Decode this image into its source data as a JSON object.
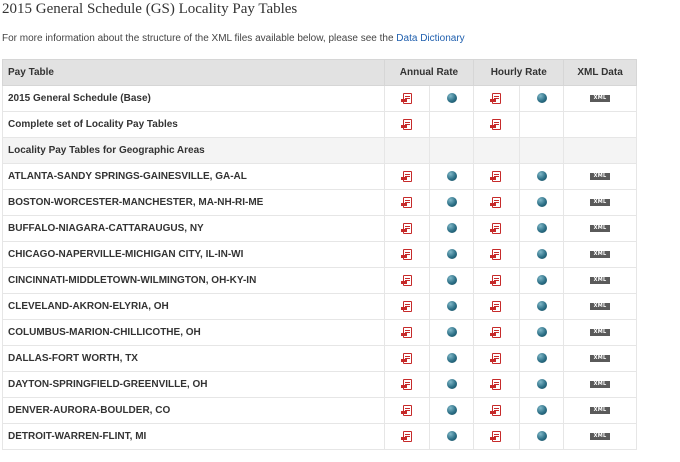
{
  "page": {
    "title": "2015 General Schedule (GS) Locality Pay Tables",
    "intro_text": "For more information about the structure of the XML files available below, please see the",
    "intro_link": "Data Dictionary"
  },
  "table": {
    "headers": {
      "pay_table": "Pay Table",
      "annual_rate": "Annual Rate",
      "hourly_rate": "Hourly Rate",
      "xml_data": "XML Data"
    },
    "xml_label": "XML",
    "icons": {
      "pdf": "pdf-icon",
      "web": "globe-icon",
      "xml": "xml-icon"
    },
    "rows": [
      {
        "name": "2015 General Schedule (Base)",
        "annual_pdf": true,
        "annual_web": true,
        "hourly_pdf": true,
        "hourly_web": true,
        "xml": true
      },
      {
        "name": "Complete set of Locality Pay Tables",
        "annual_pdf": true,
        "annual_web": false,
        "hourly_pdf": true,
        "hourly_web": false,
        "xml": false
      },
      {
        "name": "Locality Pay Tables for Geographic Areas",
        "section": true
      },
      {
        "name": "ATLANTA-SANDY SPRINGS-GAINESVILLE, GA-AL",
        "annual_pdf": true,
        "annual_web": true,
        "hourly_pdf": true,
        "hourly_web": true,
        "xml": true
      },
      {
        "name": "BOSTON-WORCESTER-MANCHESTER, MA-NH-RI-ME",
        "annual_pdf": true,
        "annual_web": true,
        "hourly_pdf": true,
        "hourly_web": true,
        "xml": true
      },
      {
        "name": "BUFFALO-NIAGARA-CATTARAUGUS, NY",
        "annual_pdf": true,
        "annual_web": true,
        "hourly_pdf": true,
        "hourly_web": true,
        "xml": true
      },
      {
        "name": "CHICAGO-NAPERVILLE-MICHIGAN CITY, IL-IN-WI",
        "annual_pdf": true,
        "annual_web": true,
        "hourly_pdf": true,
        "hourly_web": true,
        "xml": true
      },
      {
        "name": "CINCINNATI-MIDDLETOWN-WILMINGTON, OH-KY-IN",
        "annual_pdf": true,
        "annual_web": true,
        "hourly_pdf": true,
        "hourly_web": true,
        "xml": true
      },
      {
        "name": "CLEVELAND-AKRON-ELYRIA, OH",
        "annual_pdf": true,
        "annual_web": true,
        "hourly_pdf": true,
        "hourly_web": true,
        "xml": true
      },
      {
        "name": "COLUMBUS-MARION-CHILLICOTHE, OH",
        "annual_pdf": true,
        "annual_web": true,
        "hourly_pdf": true,
        "hourly_web": true,
        "xml": true
      },
      {
        "name": "DALLAS-FORT WORTH, TX",
        "annual_pdf": true,
        "annual_web": true,
        "hourly_pdf": true,
        "hourly_web": true,
        "xml": true
      },
      {
        "name": "DAYTON-SPRINGFIELD-GREENVILLE, OH",
        "annual_pdf": true,
        "annual_web": true,
        "hourly_pdf": true,
        "hourly_web": true,
        "xml": true
      },
      {
        "name": "DENVER-AURORA-BOULDER, CO",
        "annual_pdf": true,
        "annual_web": true,
        "hourly_pdf": true,
        "hourly_web": true,
        "xml": true
      },
      {
        "name": "DETROIT-WARREN-FLINT, MI",
        "annual_pdf": true,
        "annual_web": true,
        "hourly_pdf": true,
        "hourly_web": true,
        "xml": true
      }
    ]
  }
}
